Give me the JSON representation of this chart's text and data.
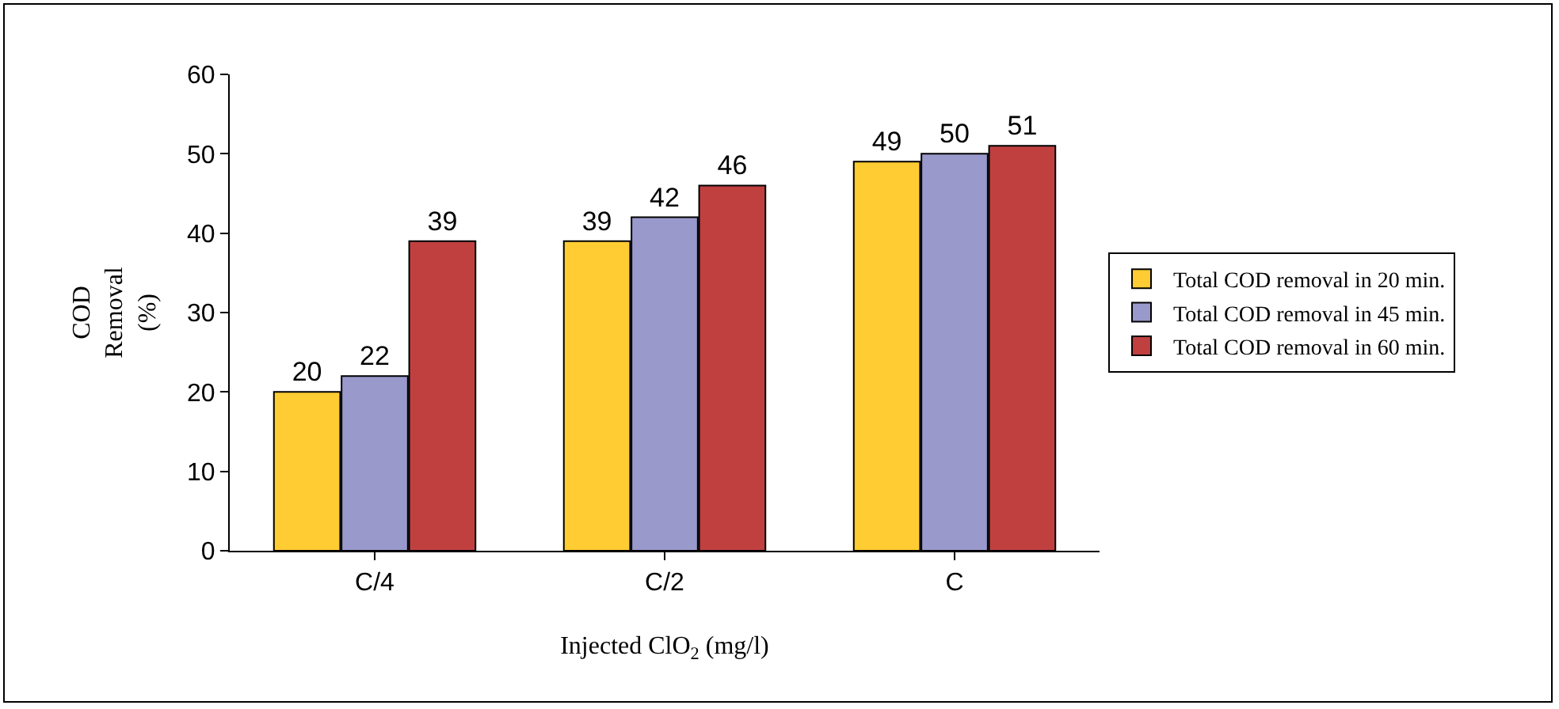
{
  "chart_data": {
    "type": "bar",
    "xlabel": "Injected ClO$_{2}$ (mg/l)",
    "ylabel": "COD Removal (%)",
    "categories": [
      "C/4",
      "C/2",
      "C"
    ],
    "series": [
      {
        "name": "Total COD removal in 20 min.",
        "color": "#ffcc33",
        "values": [
          20,
          39,
          49
        ]
      },
      {
        "name": "Total COD removal in 45 min.",
        "color": "#9999cc",
        "values": [
          22,
          42,
          50
        ]
      },
      {
        "name": "Total COD removal in 60 min.",
        "color": "#c04040",
        "values": [
          39,
          46,
          51
        ]
      }
    ],
    "ylim": [
      0,
      60
    ],
    "yticks": [
      0,
      10,
      20,
      30,
      40,
      50,
      60
    ],
    "grid": false,
    "legend": "right",
    "data_labels": true
  }
}
